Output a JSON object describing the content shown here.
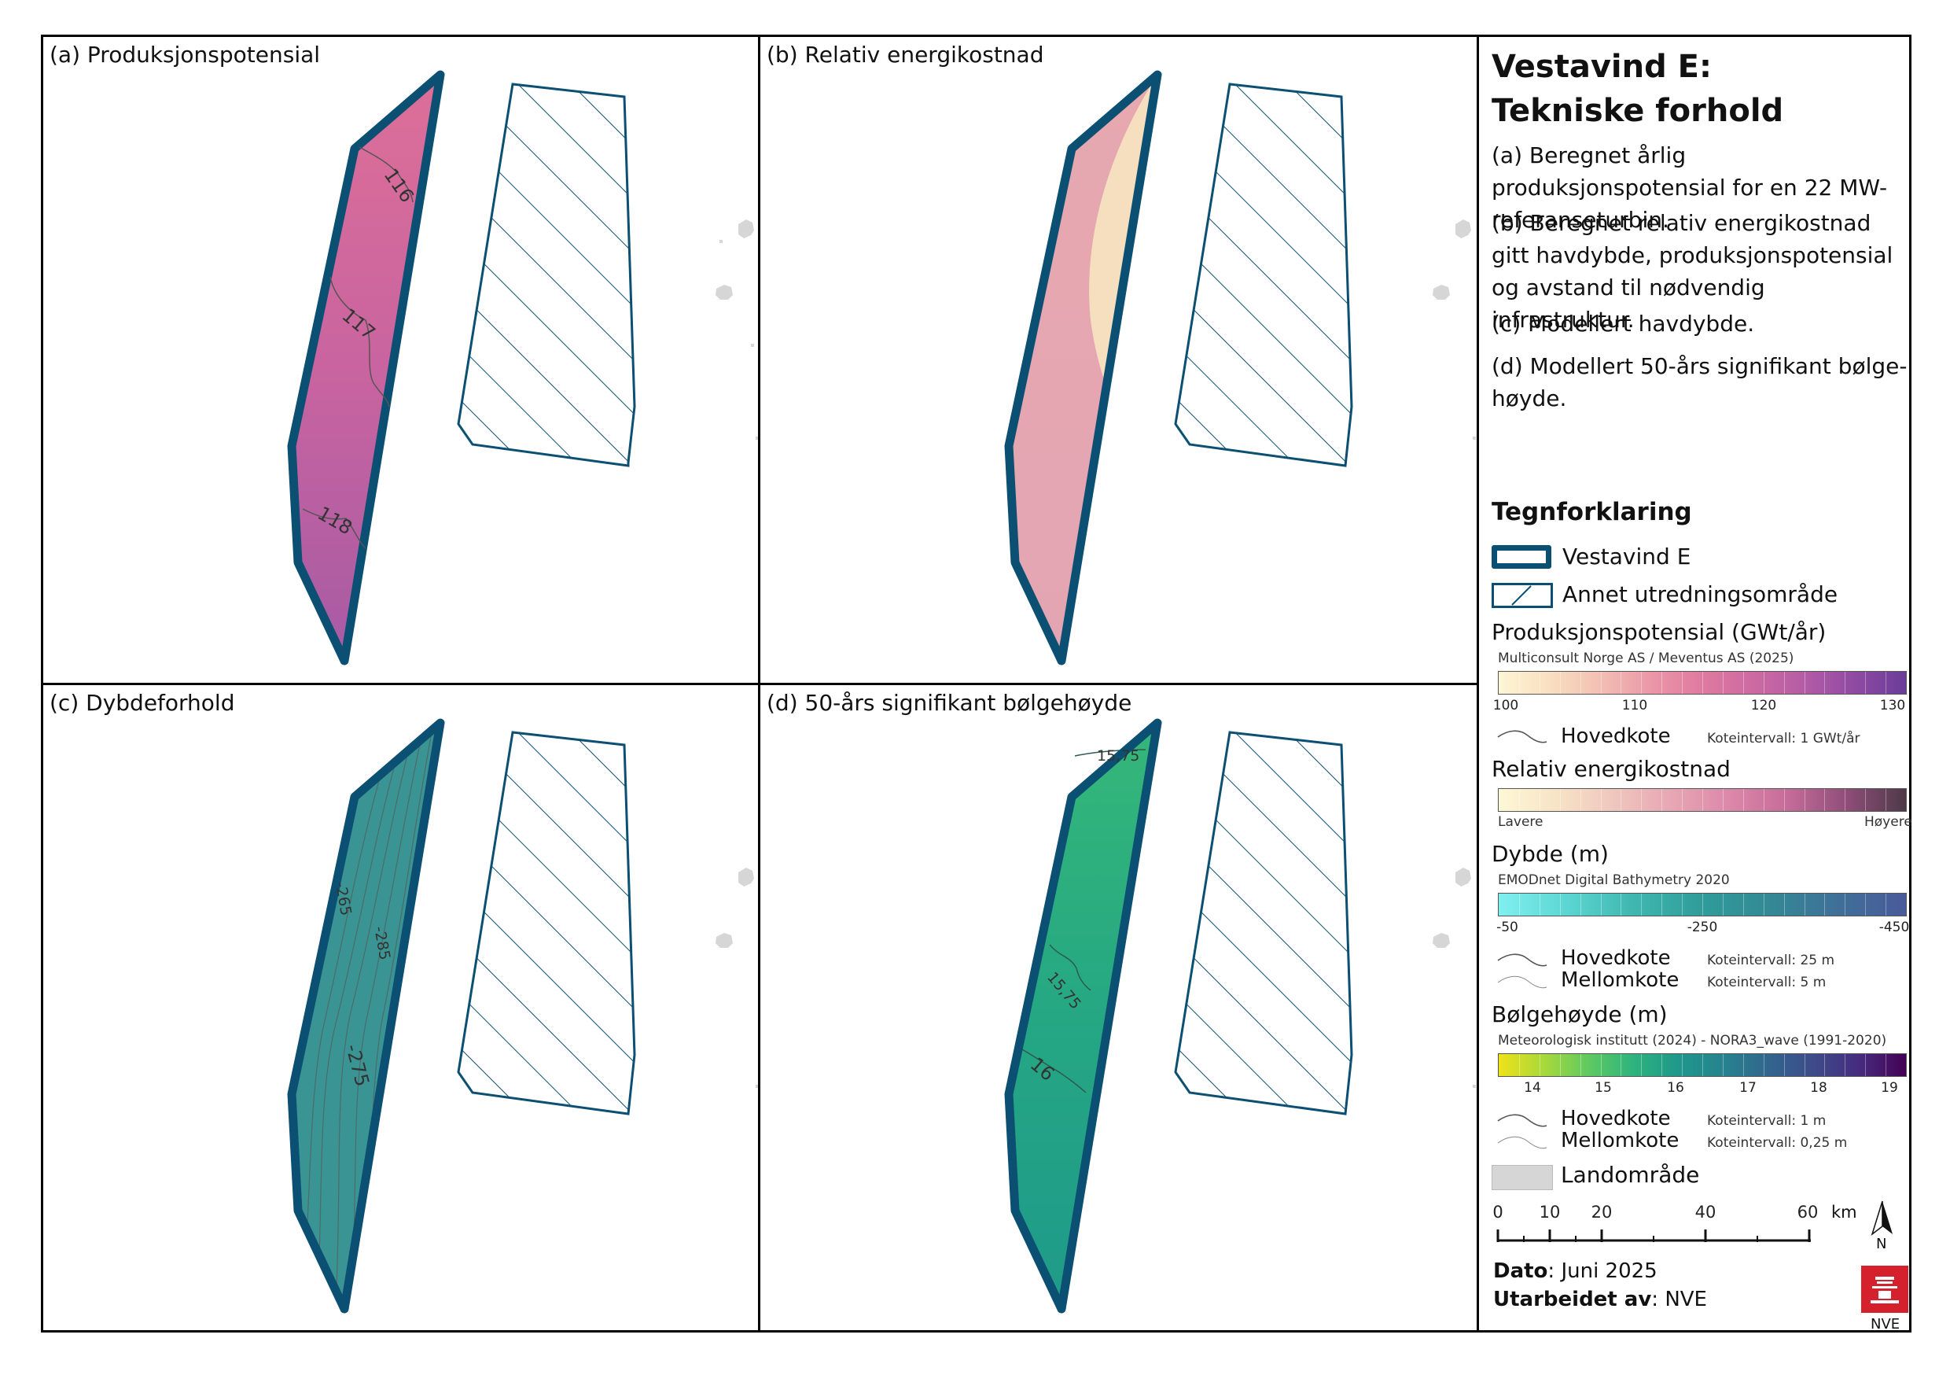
{
  "panels": {
    "a": {
      "title": "(a) Produksjonspotensial",
      "contour_labels": [
        "116",
        "117",
        "118"
      ]
    },
    "b": {
      "title": "(b) Relativ energikostnad"
    },
    "c": {
      "title": "(c) Dybdeforhold",
      "contour_labels": [
        "-265",
        "-285",
        "-275"
      ]
    },
    "d": {
      "title": "(d) 50-års signifikant bølgehøyde",
      "contour_labels": [
        "15,75",
        "15,75",
        "16"
      ]
    }
  },
  "side": {
    "title_line1": "Vestavind E:",
    "title_line2": "Tekniske forhold",
    "desc_a": "(a) Beregnet årlig produksjonspotensial for en 22 MW-referanseturbin.",
    "desc_b": "(b) Beregnet relativ energikostnad gitt havdybde, produksjonspotensial og avstand til nødvendig infrastruktur.",
    "desc_c": "(c) Modellert havdybde.",
    "desc_d": "(d) Modellert 50-års signifikant bølge-høyde.",
    "legend_title": "Tegnforklaring",
    "vestavind_label": "Vestavind E",
    "annet_label": "Annet utredningsområde",
    "prod": {
      "title": "Produksjonspotensial (GWt/år)",
      "source": "Multiconsult Norge AS / Meventus AS (2025)",
      "ticks": [
        "100",
        "110",
        "120",
        "130"
      ],
      "hovedkote": "Hovedkote",
      "interval": "Koteintervall: 1 GWt/år",
      "ramp": [
        "#fdf6d4",
        "#f9dfc0",
        "#f2bfb4",
        "#eb97a8",
        "#df7aa0",
        "#cd6aa2",
        "#b45ca6",
        "#8f4aa3",
        "#6a3d98"
      ]
    },
    "energy": {
      "title": "Relativ energikostnad",
      "low": "Lavere",
      "high": "Høyere",
      "ramp": [
        "#fdf8d5",
        "#f7e3c6",
        "#efc6bd",
        "#e6a6b3",
        "#dc87a9",
        "#c46b98",
        "#8e4d78",
        "#4d3a48"
      ]
    },
    "depth": {
      "title": "Dybde (m)",
      "source": "EMODnet Digital Bathymetry 2020",
      "ticks": [
        "-50",
        "-250",
        "-450"
      ],
      "hovedkote": "Hovedkote",
      "mellomkote": "Mellomkote",
      "interval_main": "Koteintervall: 25 m",
      "interval_minor": "Koteintervall: 5 m",
      "ramp": [
        "#7ff0f0",
        "#5cd6d2",
        "#3fb7b0",
        "#2f9c9a",
        "#338995",
        "#3f6f98",
        "#4a5a9a"
      ]
    },
    "wave": {
      "title": "Bølgehøyde (m)",
      "source": "Meteorologisk institutt (2024) - NORA3_wave (1991-2020)",
      "ticks": [
        "14",
        "15",
        "16",
        "17",
        "18",
        "19"
      ],
      "hovedkote": "Hovedkote",
      "mellomkote": "Mellomkote",
      "interval_main": "Koteintervall: 1 m",
      "interval_minor": "Koteintervall: 0,25 m",
      "ramp": [
        "#f0e21a",
        "#a8d93a",
        "#5ec962",
        "#2db37e",
        "#1f978b",
        "#26828e",
        "#32648e",
        "#3e4a89",
        "#462a7e",
        "#440154"
      ]
    },
    "land_label": "Landområde",
    "scale": {
      "ticks": [
        "0",
        "10",
        "20",
        "40",
        "60"
      ],
      "unit": "km"
    },
    "north": "N",
    "date_label": "Dato",
    "date_value": ": Juni 2025",
    "author_label": "Utarbeidet av",
    "author_value": ": NVE",
    "logo_text": "NVE"
  },
  "colors": {
    "outline": "#0b4f72",
    "hatch_line": "#0b4f72",
    "land": "#d6d6d6"
  }
}
